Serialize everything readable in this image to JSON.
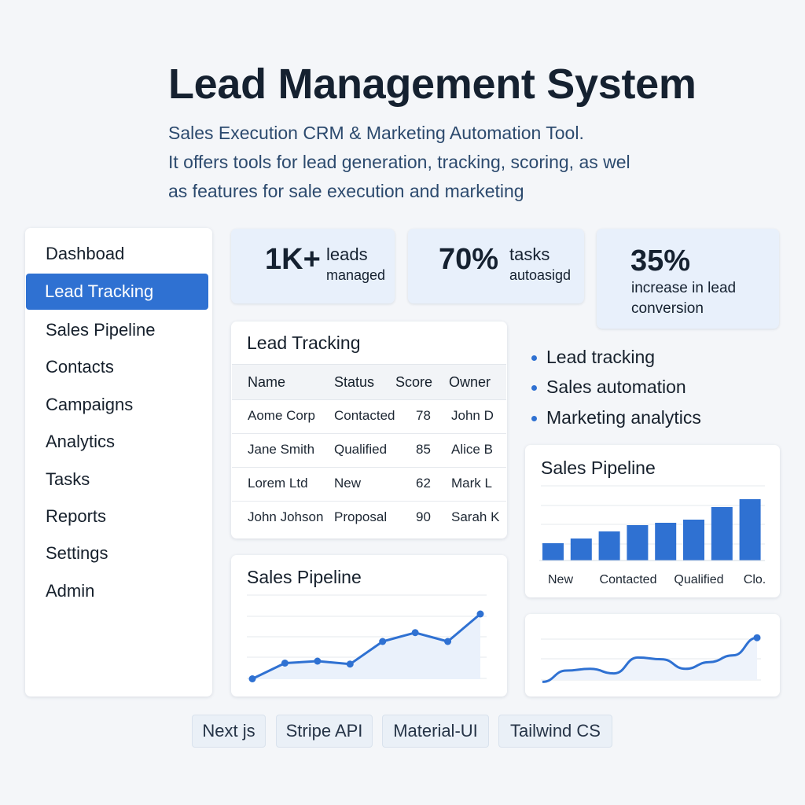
{
  "header": {
    "title": "Lead Management System",
    "subtitle_lines": [
      "Sales Execution CRM & Marketing Automation Tool.",
      "It offers tools for lead generation, tracking, scoring, as wel",
      "as features for sale execution and marketing"
    ]
  },
  "sidebar": {
    "items": [
      {
        "label": "Dashboad"
      },
      {
        "label": "Lead Tracking",
        "active": true
      },
      {
        "label": "Sales Pipeline"
      },
      {
        "label": "Contacts"
      },
      {
        "label": "Campaigns"
      },
      {
        "label": "Analytics"
      },
      {
        "label": "Tasks"
      },
      {
        "label": "Reports"
      },
      {
        "label": "Settings"
      },
      {
        "label": "Admin"
      }
    ]
  },
  "stats": [
    {
      "value": "1K+",
      "word": "leads",
      "caption": "managed"
    },
    {
      "value": "70%",
      "word": "tasks",
      "caption": "autoasigd"
    },
    {
      "value": "35%",
      "caption_lines": [
        "increase in lead",
        "conversion"
      ]
    }
  ],
  "lead_table": {
    "title": "Lead Tracking",
    "columns": [
      "Name",
      "Status",
      "Score",
      "Owner"
    ],
    "rows": [
      [
        "Aome Corp",
        "Contacted",
        "78",
        "John D"
      ],
      [
        "Jane Smith",
        "Qualified",
        "85",
        "Alice B"
      ],
      [
        "Lorem Ltd",
        "New",
        "62",
        "Mark L"
      ],
      [
        "John Johson",
        "Proposal",
        "90",
        "Sarah K"
      ]
    ]
  },
  "features": [
    "Lead tracking",
    "Sales automation",
    "Marketing analytics"
  ],
  "line_card": {
    "title": "Sales Pipeline"
  },
  "bar_card": {
    "title": "Sales Pipeline"
  },
  "tech_tags": [
    "Next js",
    "Stripe API",
    "Material-UI",
    "Tailwind CS"
  ],
  "colors": {
    "accent": "#2f71d2",
    "background": "#f4f6f9",
    "stat_bg": "#e8f0fb"
  },
  "chart_data": [
    {
      "type": "line",
      "title": "Sales Pipeline",
      "series": [
        {
          "values": [
            10,
            26,
            28,
            25,
            48,
            57,
            48,
            76
          ]
        }
      ],
      "ylim": [
        0,
        100
      ],
      "grid": true
    },
    {
      "type": "bar",
      "title": "Sales Pipeline",
      "x_labels_shown": [
        "New",
        "Contacted",
        "Qualified",
        "Clo."
      ],
      "values": [
        22,
        28,
        37,
        45,
        48,
        52,
        68,
        78
      ],
      "ylim": [
        0,
        100
      ],
      "grid": true
    },
    {
      "type": "line",
      "series": [
        {
          "values": [
            5,
            25,
            28,
            20,
            48,
            45,
            28,
            40,
            52,
            83
          ]
        }
      ],
      "ylim": [
        0,
        100
      ],
      "grid": true
    }
  ]
}
